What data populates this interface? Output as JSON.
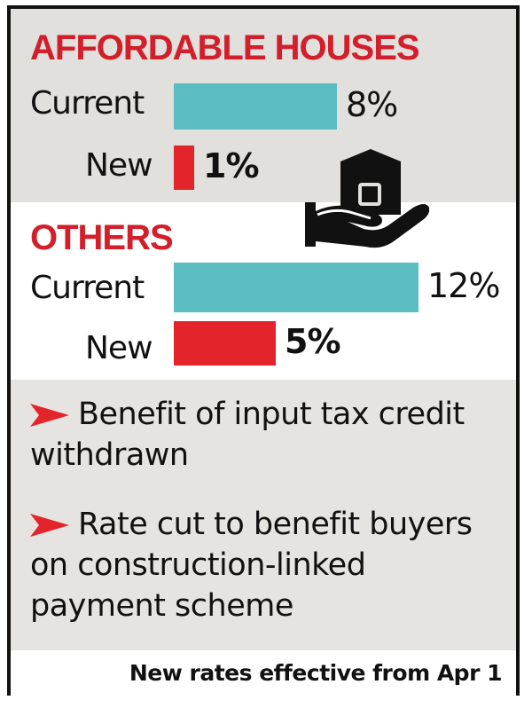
{
  "chart_data": {
    "type": "bar",
    "orientation": "horizontal",
    "groups": [
      {
        "title": "AFFORDABLE HOUSES",
        "rows": [
          {
            "label": "Current",
            "value": 8,
            "display": "8%",
            "color": "#5bbcc1"
          },
          {
            "label": "New",
            "value": 1,
            "display": "1%",
            "color": "#e3242b"
          }
        ]
      },
      {
        "title": "OTHERS",
        "rows": [
          {
            "label": "Current",
            "value": 12,
            "display": "12%",
            "color": "#5bbcc1"
          },
          {
            "label": "New",
            "value": 5,
            "display": "5%",
            "color": "#e3242b"
          }
        ]
      }
    ],
    "xlim": [
      0,
      12
    ],
    "grid": false,
    "legend": "none"
  },
  "notes": [
    "Benefit of input tax credit withdrawn",
    "Rate cut to benefit buyers on construction-linked payment scheme"
  ],
  "footer": "New rates effective from Apr 1",
  "icons": {
    "illustration": "hand-holding-house-icon",
    "bullet": "red-arrow-icon"
  },
  "colors": {
    "title": "#d21f2b",
    "current": "#5bbcc1",
    "new": "#e3242b"
  }
}
